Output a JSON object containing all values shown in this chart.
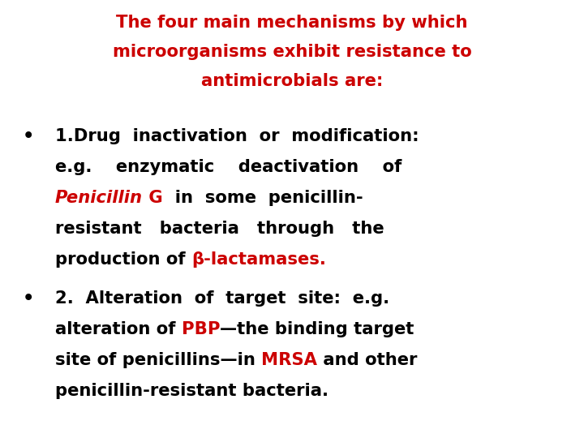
{
  "bg_color": "#ffffff",
  "red": "#cc0000",
  "black": "#000000",
  "figsize": [
    7.2,
    5.4
  ],
  "dpi": 100,
  "title_fontsize": 15.2,
  "body_fontsize": 15.2,
  "font_family": "DejaVu Sans"
}
